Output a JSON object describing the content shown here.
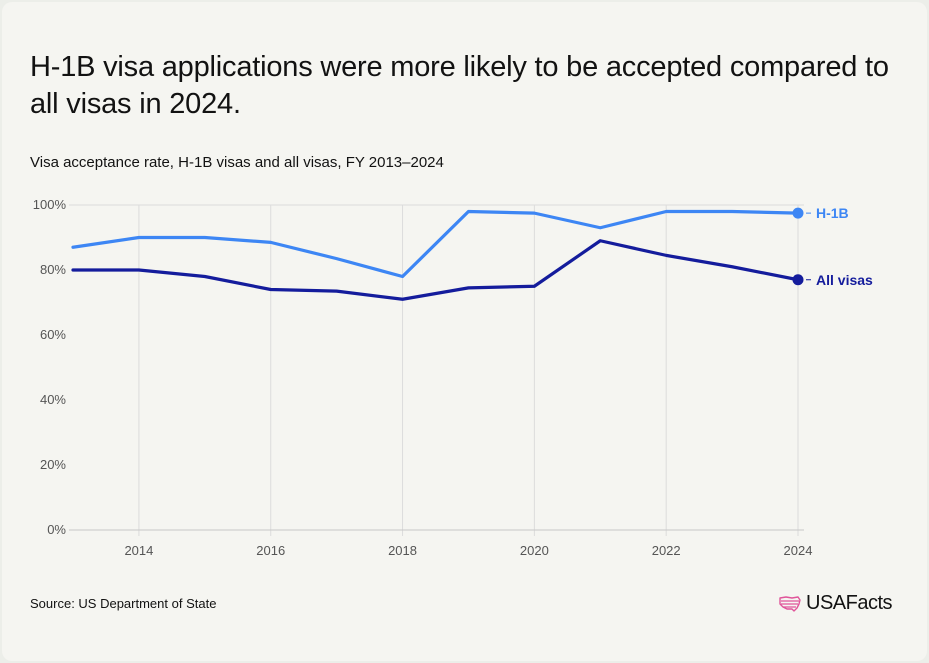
{
  "title": "H-1B visa applications were more likely to be accepted compared to all visas in 2024.",
  "subtitle": "Visa acceptance rate, H-1B visas and all visas, FY 2013–2024",
  "source": "Source: US Department of State",
  "brand": {
    "name": "USAFacts",
    "icon": "us-map-flag-icon"
  },
  "colors": {
    "background": "#f5f5f1",
    "h1b": "#3d86f4",
    "all_visas": "#141c9c",
    "grid": "#dcdcdc",
    "tick_label": "#555555",
    "logo_accent": "#e0559a"
  },
  "chart_data": {
    "type": "line",
    "x": [
      2013,
      2014,
      2015,
      2016,
      2017,
      2018,
      2019,
      2020,
      2021,
      2022,
      2023,
      2024
    ],
    "series": [
      {
        "name": "H-1B",
        "values": [
          87,
          90,
          90,
          88.5,
          83.5,
          78,
          98,
          97.5,
          93,
          98,
          98,
          97.5
        ]
      },
      {
        "name": "All visas",
        "values": [
          80,
          80,
          78,
          74,
          73.5,
          71,
          74.5,
          75,
          89,
          84.5,
          81,
          77
        ]
      }
    ],
    "xlim": [
      2013,
      2024
    ],
    "ylim": [
      0,
      100
    ],
    "x_ticks": [
      2014,
      2016,
      2018,
      2020,
      2022,
      2024
    ],
    "y_ticks": [
      0,
      20,
      40,
      60,
      80,
      100
    ],
    "y_tick_labels": [
      "0%",
      "20%",
      "40%",
      "60%",
      "80%",
      "100%"
    ],
    "xlabel": "",
    "ylabel": "",
    "grid": "vertical",
    "legend": "end-of-line labels"
  }
}
